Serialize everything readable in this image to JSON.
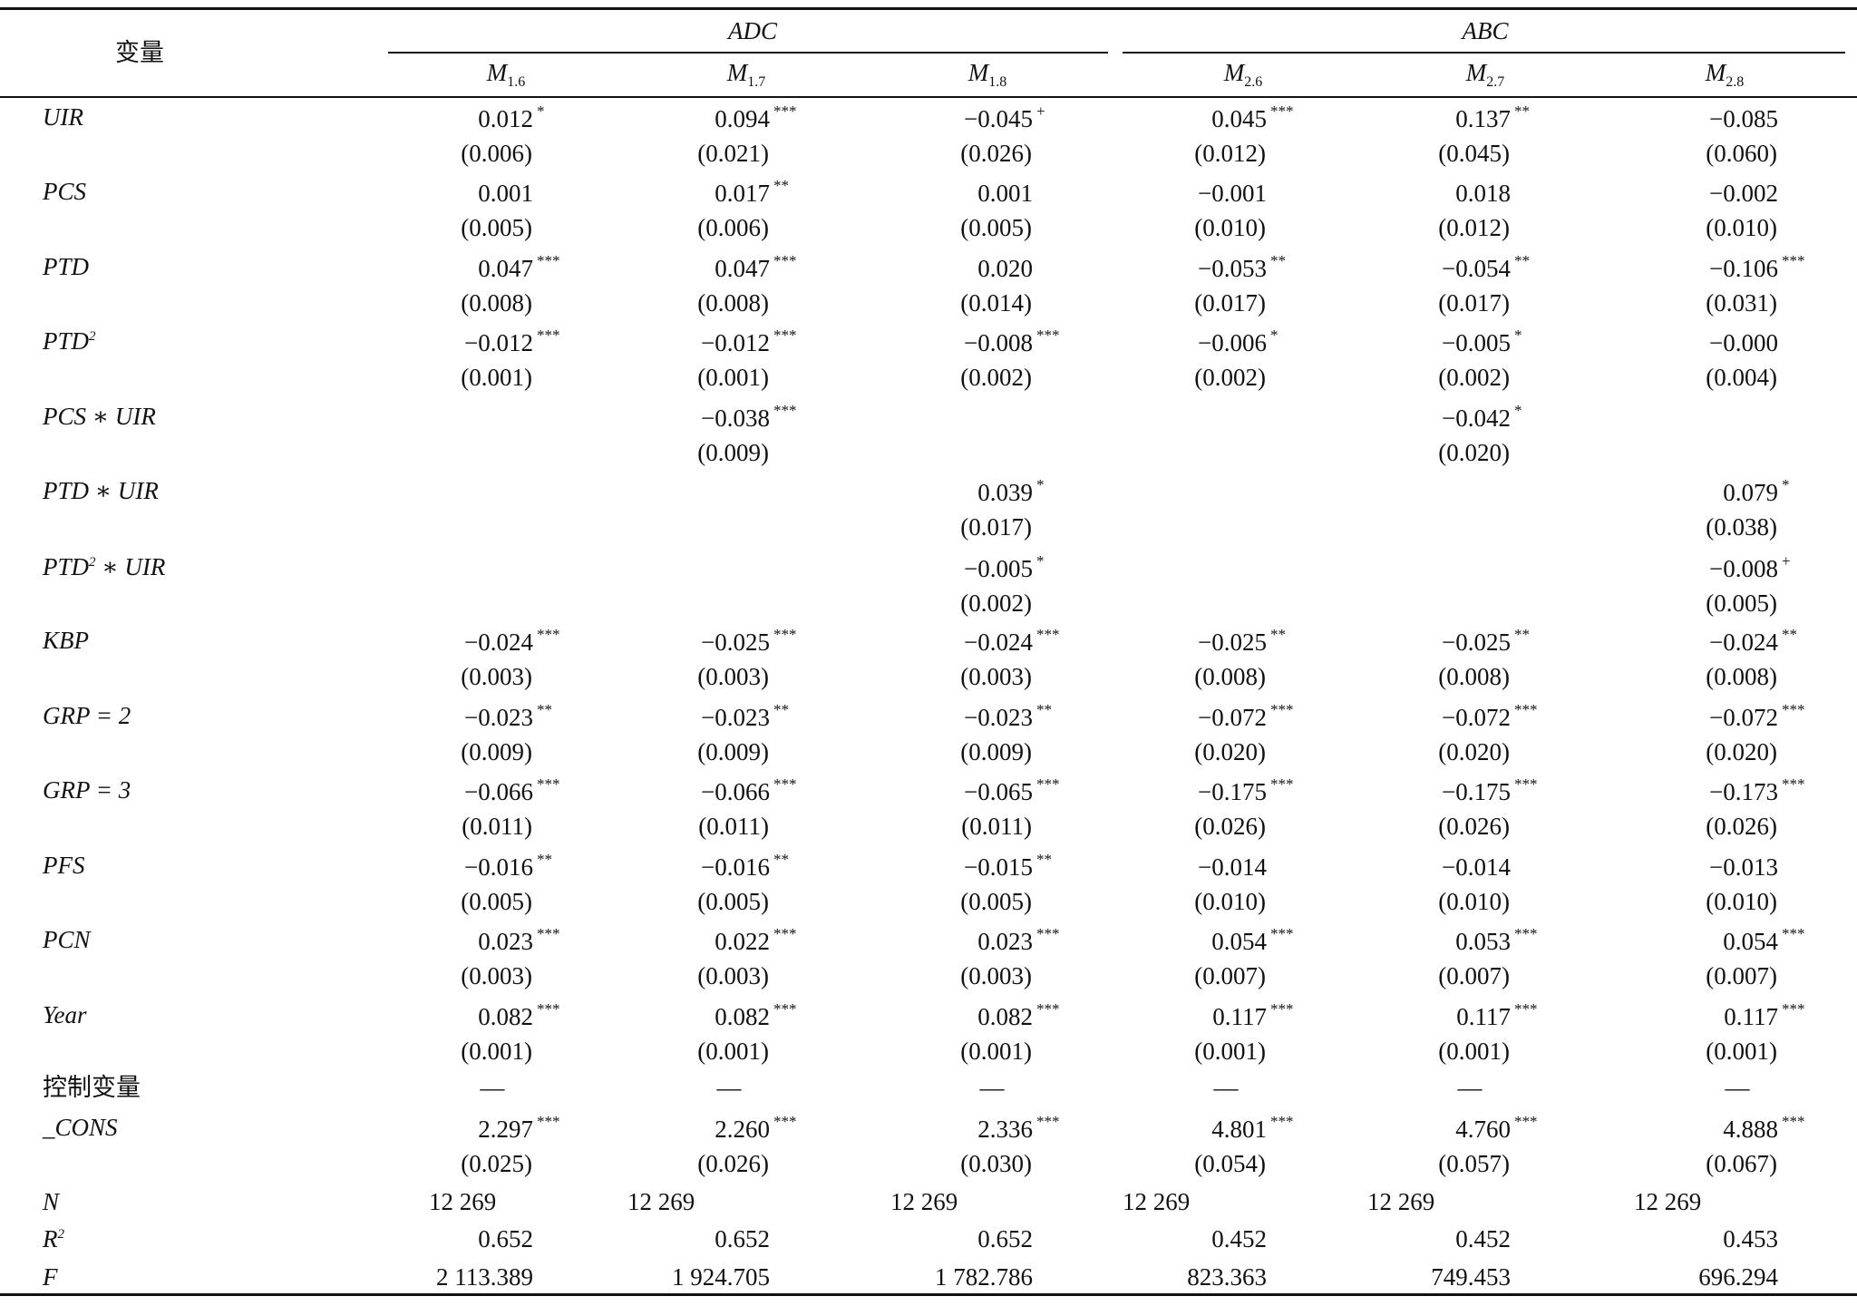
{
  "header": {
    "variable": "变量",
    "groups": [
      {
        "name": "ADC"
      },
      {
        "name": "ABC"
      }
    ],
    "models": [
      {
        "base": "M",
        "sub": "1.6"
      },
      {
        "base": "M",
        "sub": "1.7"
      },
      {
        "base": "M",
        "sub": "1.8"
      },
      {
        "base": "M",
        "sub": "2.6"
      },
      {
        "base": "M",
        "sub": "2.7"
      },
      {
        "base": "M",
        "sub": "2.8"
      }
    ]
  },
  "rows": [
    {
      "label": [
        {
          "t": "UIR"
        }
      ],
      "cells": [
        {
          "coef": "0.012",
          "stars": "*",
          "se": "(0.006)"
        },
        {
          "coef": "0.094",
          "stars": "***",
          "se": "(0.021)"
        },
        {
          "coef": "−0.045",
          "stars": "+",
          "se": "(0.026)"
        },
        {
          "coef": "0.045",
          "stars": "***",
          "se": "(0.012)"
        },
        {
          "coef": "0.137",
          "stars": "**",
          "se": "(0.045)"
        },
        {
          "coef": "−0.085",
          "se": "(0.060)"
        }
      ]
    },
    {
      "label": [
        {
          "t": "PCS"
        }
      ],
      "cells": [
        {
          "coef": "0.001",
          "se": "(0.005)"
        },
        {
          "coef": "0.017",
          "stars": "**",
          "se": "(0.006)"
        },
        {
          "coef": "0.001",
          "se": "(0.005)"
        },
        {
          "coef": "−0.001",
          "se": "(0.010)"
        },
        {
          "coef": "0.018",
          "se": "(0.012)"
        },
        {
          "coef": "−0.002",
          "se": "(0.010)"
        }
      ]
    },
    {
      "label": [
        {
          "t": "PTD"
        }
      ],
      "cells": [
        {
          "coef": "0.047",
          "stars": "***",
          "se": "(0.008)"
        },
        {
          "coef": "0.047",
          "stars": "***",
          "se": "(0.008)"
        },
        {
          "coef": "0.020",
          "se": "(0.014)"
        },
        {
          "coef": "−0.053",
          "stars": "**",
          "se": "(0.017)"
        },
        {
          "coef": "−0.054",
          "stars": "**",
          "se": "(0.017)"
        },
        {
          "coef": "−0.106",
          "stars": "***",
          "se": "(0.031)"
        }
      ]
    },
    {
      "label": [
        {
          "t": "PTD"
        },
        {
          "sup": "2"
        }
      ],
      "cells": [
        {
          "coef": "−0.012",
          "stars": "***",
          "se": "(0.001)"
        },
        {
          "coef": "−0.012",
          "stars": "***",
          "se": "(0.001)"
        },
        {
          "coef": "−0.008",
          "stars": "***",
          "se": "(0.002)"
        },
        {
          "coef": "−0.006",
          "stars": "*",
          "se": "(0.002)"
        },
        {
          "coef": "−0.005",
          "stars": "*",
          "se": "(0.002)"
        },
        {
          "coef": "−0.000",
          "se": "(0.004)"
        }
      ]
    },
    {
      "label": [
        {
          "t": "PCS ∗ UIR"
        }
      ],
      "cells": [
        null,
        {
          "coef": "−0.038",
          "stars": "***",
          "se": "(0.009)"
        },
        null,
        null,
        {
          "coef": "−0.042",
          "stars": "*",
          "se": "(0.020)"
        },
        null
      ]
    },
    {
      "label": [
        {
          "t": "PTD ∗ UIR"
        }
      ],
      "cells": [
        null,
        null,
        {
          "coef": "0.039",
          "stars": "*",
          "se": "(0.017)"
        },
        null,
        null,
        {
          "coef": "0.079",
          "stars": "*",
          "se": "(0.038)"
        }
      ]
    },
    {
      "label": [
        {
          "t": "PTD"
        },
        {
          "sup": "2"
        },
        {
          "t": " ∗ UIR"
        }
      ],
      "cells": [
        null,
        null,
        {
          "coef": "−0.005",
          "stars": "*",
          "se": "(0.002)"
        },
        null,
        null,
        {
          "coef": "−0.008",
          "stars": "+",
          "se": "(0.005)"
        }
      ]
    },
    {
      "label": [
        {
          "t": "KBP"
        }
      ],
      "cells": [
        {
          "coef": "−0.024",
          "stars": "***",
          "se": "(0.003)"
        },
        {
          "coef": "−0.025",
          "stars": "***",
          "se": "(0.003)"
        },
        {
          "coef": "−0.024",
          "stars": "***",
          "se": "(0.003)"
        },
        {
          "coef": "−0.025",
          "stars": "**",
          "se": "(0.008)"
        },
        {
          "coef": "−0.025",
          "stars": "**",
          "se": "(0.008)"
        },
        {
          "coef": "−0.024",
          "stars": "**",
          "se": "(0.008)"
        }
      ]
    },
    {
      "label": [
        {
          "t": "GRP = 2"
        }
      ],
      "cells": [
        {
          "coef": "−0.023",
          "stars": "**",
          "se": "(0.009)"
        },
        {
          "coef": "−0.023",
          "stars": "**",
          "se": "(0.009)"
        },
        {
          "coef": "−0.023",
          "stars": "**",
          "se": "(0.009)"
        },
        {
          "coef": "−0.072",
          "stars": "***",
          "se": "(0.020)"
        },
        {
          "coef": "−0.072",
          "stars": "***",
          "se": "(0.020)"
        },
        {
          "coef": "−0.072",
          "stars": "***",
          "se": "(0.020)"
        }
      ]
    },
    {
      "label": [
        {
          "t": "GRP = 3"
        }
      ],
      "cells": [
        {
          "coef": "−0.066",
          "stars": "***",
          "se": "(0.011)"
        },
        {
          "coef": "−0.066",
          "stars": "***",
          "se": "(0.011)"
        },
        {
          "coef": "−0.065",
          "stars": "***",
          "se": "(0.011)"
        },
        {
          "coef": "−0.175",
          "stars": "***",
          "se": "(0.026)"
        },
        {
          "coef": "−0.175",
          "stars": "***",
          "se": "(0.026)"
        },
        {
          "coef": "−0.173",
          "stars": "***",
          "se": "(0.026)"
        }
      ]
    },
    {
      "label": [
        {
          "t": "PFS"
        }
      ],
      "cells": [
        {
          "coef": "−0.016",
          "stars": "**",
          "se": "(0.005)"
        },
        {
          "coef": "−0.016",
          "stars": "**",
          "se": "(0.005)"
        },
        {
          "coef": "−0.015",
          "stars": "**",
          "se": "(0.005)"
        },
        {
          "coef": "−0.014",
          "se": "(0.010)"
        },
        {
          "coef": "−0.014",
          "se": "(0.010)"
        },
        {
          "coef": "−0.013",
          "se": "(0.010)"
        }
      ]
    },
    {
      "label": [
        {
          "t": "PCN"
        }
      ],
      "cells": [
        {
          "coef": "0.023",
          "stars": "***",
          "se": "(0.003)"
        },
        {
          "coef": "0.022",
          "stars": "***",
          "se": "(0.003)"
        },
        {
          "coef": "0.023",
          "stars": "***",
          "se": "(0.003)"
        },
        {
          "coef": "0.054",
          "stars": "***",
          "se": "(0.007)"
        },
        {
          "coef": "0.053",
          "stars": "***",
          "se": "(0.007)"
        },
        {
          "coef": "0.054",
          "stars": "***",
          "se": "(0.007)"
        }
      ]
    },
    {
      "label": [
        {
          "t": "Year"
        }
      ],
      "cells": [
        {
          "coef": "0.082",
          "stars": "***",
          "se": "(0.001)"
        },
        {
          "coef": "0.082",
          "stars": "***",
          "se": "(0.001)"
        },
        {
          "coef": "0.082",
          "stars": "***",
          "se": "(0.001)"
        },
        {
          "coef": "0.117",
          "stars": "***",
          "se": "(0.001)"
        },
        {
          "coef": "0.117",
          "stars": "***",
          "se": "(0.001)"
        },
        {
          "coef": "0.117",
          "stars": "***",
          "se": "(0.001)"
        }
      ]
    },
    {
      "label": [
        {
          "t": "控制变量"
        }
      ],
      "cells": [
        "—",
        "—",
        "—",
        "—",
        "—",
        "—"
      ]
    },
    {
      "label": [
        {
          "t": "_CONS"
        }
      ],
      "cells": [
        {
          "coef": "2.297",
          "stars": "***",
          "se": "(0.025)"
        },
        {
          "coef": "2.260",
          "stars": "***",
          "se": "(0.026)"
        },
        {
          "coef": "2.336",
          "stars": "***",
          "se": "(0.030)"
        },
        {
          "coef": "4.801",
          "stars": "***",
          "se": "(0.054)"
        },
        {
          "coef": "4.760",
          "stars": "***",
          "se": "(0.057)"
        },
        {
          "coef": "4.888",
          "stars": "***",
          "se": "(0.067)"
        }
      ]
    },
    {
      "label": [
        {
          "t": "N"
        }
      ],
      "cells": [
        "12 269",
        "12 269",
        "12 269",
        "12 269",
        "12 269",
        "12 269"
      ]
    },
    {
      "label": [
        {
          "t": "R"
        },
        {
          "sup": "2"
        }
      ],
      "cells": [
        "0.652",
        "0.652",
        "0.652",
        "0.452",
        "0.452",
        "0.453"
      ]
    },
    {
      "label": [
        {
          "t": "F"
        }
      ],
      "cells": [
        "2 113.389",
        "1 924.705",
        "1 782.786",
        "823.363",
        "749.453",
        "696.294"
      ]
    }
  ]
}
